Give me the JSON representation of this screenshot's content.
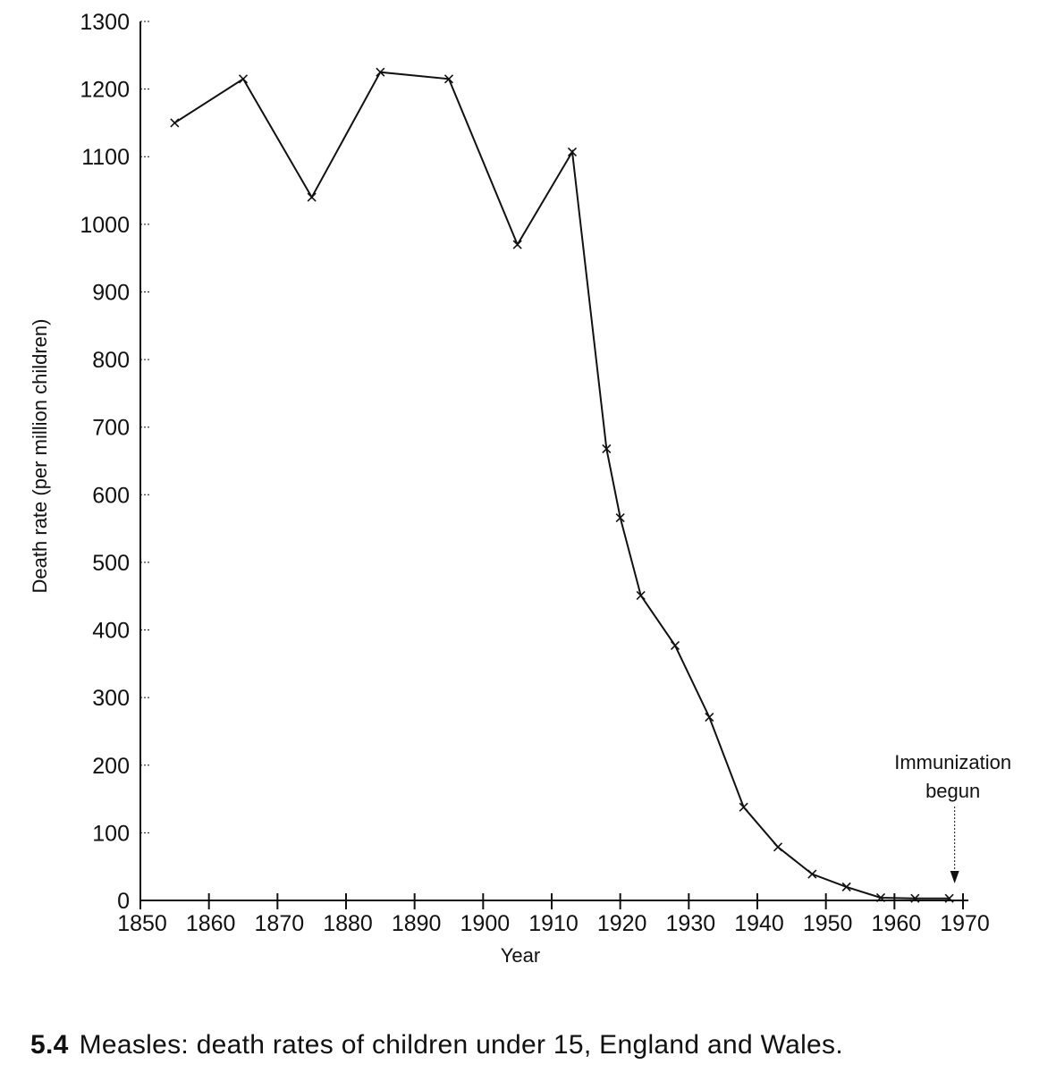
{
  "chart_data": {
    "type": "line",
    "ylabel": "Death rate (per million children)",
    "xlabel": "Year",
    "xlim": [
      1850,
      1970
    ],
    "ylim": [
      0,
      1300
    ],
    "x_ticks": [
      1850,
      1860,
      1870,
      1880,
      1890,
      1900,
      1910,
      1920,
      1930,
      1940,
      1950,
      1960,
      1970
    ],
    "y_ticks": [
      0,
      100,
      200,
      300,
      400,
      500,
      600,
      700,
      800,
      900,
      1000,
      1100,
      1200,
      1300
    ],
    "series": [
      {
        "x": [
          1855,
          1865,
          1875,
          1885,
          1895,
          1905,
          1913,
          1918,
          1920,
          1923,
          1928,
          1933,
          1938,
          1943,
          1948,
          1953,
          1958,
          1963,
          1968
        ],
        "y": [
          1150,
          1215,
          1040,
          1225,
          1215,
          970,
          1107,
          668,
          566,
          451,
          377,
          271,
          138,
          79,
          39,
          20,
          4,
          3,
          3
        ],
        "marker": "x",
        "color": "#111111"
      }
    ],
    "annotations": [
      {
        "line1": "Immunization",
        "line2": "begun",
        "x": 1968,
        "arrow": "down"
      }
    ],
    "grid": false
  },
  "caption": {
    "number": "5.4",
    "text": "Measles: death rates of children under 15, England and Wales."
  }
}
